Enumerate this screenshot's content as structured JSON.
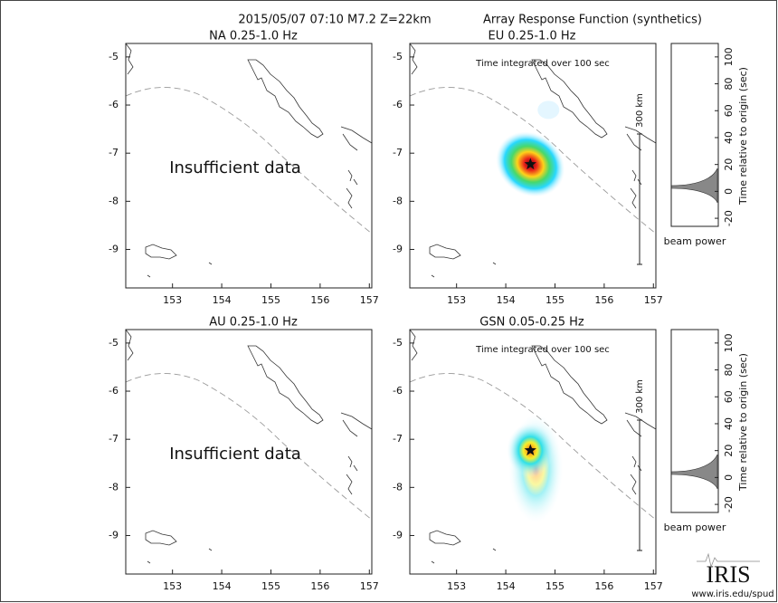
{
  "header": {
    "event": "2015/05/07 07:10  M7.2  Z=22km",
    "title": "Array Response Function (synthetics)"
  },
  "maps": [
    {
      "title": "NA  0.25-1.0 Hz",
      "note": "Insufficient data"
    },
    {
      "title": "EU  0.25-1.0 Hz",
      "note": "Time integrated over 100 sec",
      "scale": "300 km"
    },
    {
      "title": "AU  0.25-1.0 Hz",
      "note": "Insufficient data"
    },
    {
      "title": "GSN  0.05-0.25 Hz",
      "note": "Time integrated over 100 sec",
      "scale": "300 km"
    }
  ],
  "map_axes": {
    "xlim": [
      152.05,
      157.05
    ],
    "xticks": [
      153,
      154,
      155,
      156,
      157
    ],
    "ylim": [
      -9.8,
      -4.72
    ],
    "yticks": [
      -5,
      -6,
      -7,
      -8,
      -9
    ]
  },
  "epicenter": {
    "lon": 154.5,
    "lat": -7.23
  },
  "beam": {
    "label": "beam power",
    "axis_label": "Time relative to origin (sec)",
    "ylim": [
      -26,
      110
    ],
    "yticks": [
      -20,
      0,
      20,
      40,
      60,
      80,
      100
    ]
  },
  "footer": {
    "logo": "IRIS",
    "url": "www.iris.edu/spud"
  }
}
